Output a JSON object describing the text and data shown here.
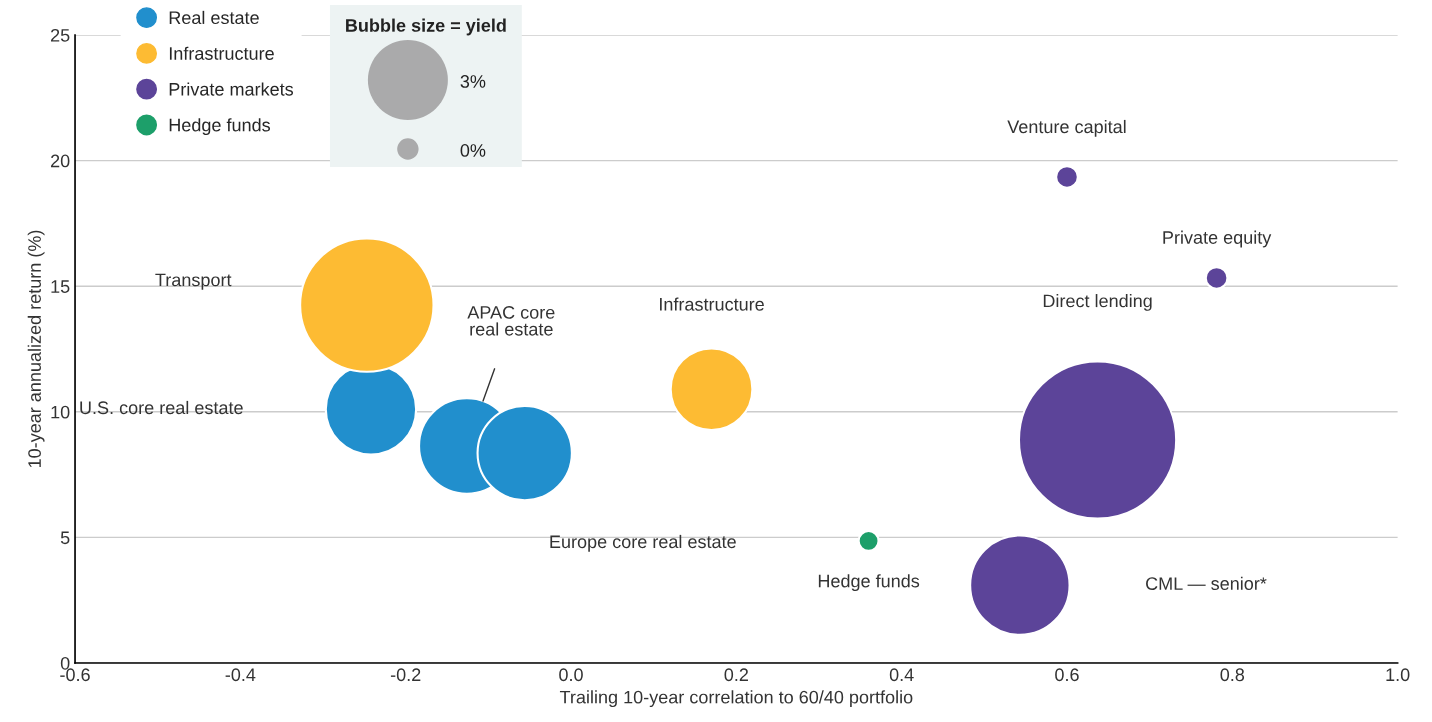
{
  "chart_data": {
    "type": "bubble",
    "xlabel": "Trailing 10-year correlation to 60/40 portfolio",
    "ylabel": "10-year annualized return (%)",
    "series": [
      {
        "name": "Real estate",
        "color": "#218fcd",
        "x": [
          -0.242,
          -0.126,
          -0.056
        ],
        "values": [
          10.1,
          8.64,
          8.36
        ],
        "sizes": [
          0.33,
          0.37,
          0.36
        ]
      },
      {
        "name": "Infrastructure",
        "color": "#fdbb33",
        "x": [
          -0.247,
          0.17
        ],
        "values": [
          14.25,
          10.9
        ],
        "sizes": [
          0.72,
          0.27
        ]
      },
      {
        "name": "Private markets",
        "color": "#5c4499",
        "x": [
          0.6,
          0.781,
          0.637,
          0.543
        ],
        "values": [
          19.35,
          15.33,
          8.88,
          3.1
        ],
        "sizes": [
          0.019,
          0.019,
          1,
          0.4
        ]
      },
      {
        "name": "Hedge funds",
        "color": "#1d9f6a",
        "x": [
          0.36
        ],
        "values": [
          4.86
        ],
        "sizes": [
          0.016
        ]
      }
    ],
    "annotations": [
      "Transport",
      "U.S. core real estate",
      "APAC core\nreal estate",
      "Europe core real estate",
      "Infrastructure",
      "Direct lending",
      "CML — senior*",
      "Hedge funds",
      "Venture capital",
      "Private equity",
      "Bubble size = yield",
      "3%",
      "0%"
    ],
    "xlim": [
      -0.6,
      1.0
    ],
    "xticks": [
      -0.6,
      -0.4,
      -0.2,
      {
        "value": 0,
        "label": "0.0"
      },
      0.2,
      0.4,
      0.6,
      0.8,
      {
        "value": 1,
        "label": "1.0"
      }
    ],
    "ylim": [
      0,
      25
    ],
    "yticks": [
      0,
      5,
      10,
      15,
      20,
      25
    ],
    "grid": "y",
    "legend": "top left",
    "marker": "circle"
  }
}
